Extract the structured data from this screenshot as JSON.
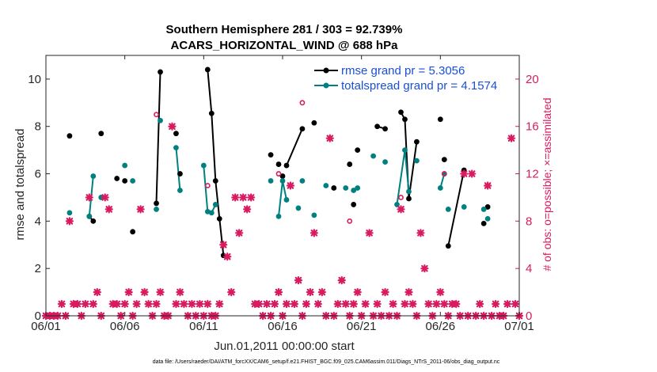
{
  "chart_data": {
    "type": "line",
    "title_line1": "Southern Hemisphere 281 / 303 = 92.739%",
    "title_line2": "ACARS_HORIZONTAL_WIND @ 688 hPa",
    "xlabel": "Jun.01,2011 00:00:00 start",
    "ylabel_left": "rmse and totalspread",
    "ylabel_right": "# of obs: o=possible; ×=assimilated",
    "xlim": [
      0,
      30
    ],
    "ylim_left": [
      0,
      11
    ],
    "ylim_right": [
      0,
      22
    ],
    "x_ticks": [
      {
        "v": 0,
        "label": "06/01"
      },
      {
        "v": 5,
        "label": "06/06"
      },
      {
        "v": 10,
        "label": "06/11"
      },
      {
        "v": 15,
        "label": "06/16"
      },
      {
        "v": 20,
        "label": "06/21"
      },
      {
        "v": 25,
        "label": "06/26"
      },
      {
        "v": 30,
        "label": "07/01"
      }
    ],
    "y_ticks_left": [
      {
        "v": 0,
        "label": "0"
      },
      {
        "v": 2,
        "label": "2"
      },
      {
        "v": 4,
        "label": "4"
      },
      {
        "v": 6,
        "label": "6"
      },
      {
        "v": 8,
        "label": "8"
      },
      {
        "v": 10,
        "label": "10"
      }
    ],
    "y_ticks_right": [
      {
        "v": 0,
        "label": "0"
      },
      {
        "v": 4,
        "label": "4"
      },
      {
        "v": 8,
        "label": "8"
      },
      {
        "v": 12,
        "label": "12"
      },
      {
        "v": 16,
        "label": "16"
      },
      {
        "v": 20,
        "label": "20"
      }
    ],
    "legend": {
      "placement": "top-right",
      "entries": [
        "rmse grand pr = 5.3056",
        "totalspread grand pr = 4.1574"
      ]
    },
    "footer": "data file: /Users/raeder/DAI/ATM_forcXX/CAM6_setup/f.e21.FHIST_BGC.f09_025.CAM6assim.011/Diags_NTrS_2011-06/obs_diag_output.nc",
    "colors": {
      "rmse": "#000000",
      "spread": "#008080",
      "obs": "#d81b60"
    },
    "series": [
      {
        "name": "rmse",
        "color": "#000000",
        "points": [
          [
            1.5,
            7.6
          ],
          [
            2.75,
            4.2
          ],
          [
            3,
            4.0
          ],
          [
            3.5,
            7.7
          ],
          [
            4.5,
            5.8
          ],
          [
            5,
            5.7
          ],
          [
            5.5,
            3.55
          ],
          [
            7,
            4.75
          ],
          [
            7.25,
            10.3
          ],
          [
            8.25,
            7.7
          ],
          [
            8.5,
            6.0
          ],
          [
            10.25,
            10.4
          ],
          [
            10.5,
            8.55
          ],
          [
            10.75,
            5.7
          ],
          [
            11,
            4.1
          ],
          [
            11.25,
            2.55
          ],
          [
            14.25,
            6.8
          ],
          [
            14.75,
            6.4
          ],
          [
            15,
            5.9
          ],
          [
            15.25,
            6.35
          ],
          [
            16.25,
            7.9
          ],
          [
            17,
            8.15
          ],
          [
            18.25,
            5.4
          ],
          [
            19.25,
            6.4
          ],
          [
            19.5,
            4.7
          ],
          [
            19.75,
            7.0
          ],
          [
            21,
            8.0
          ],
          [
            21.5,
            7.9
          ],
          [
            22.5,
            8.6
          ],
          [
            22.75,
            8.3
          ],
          [
            23,
            4.95
          ],
          [
            23.5,
            7.35
          ],
          [
            25,
            8.3
          ],
          [
            25.25,
            6.6
          ],
          [
            25.5,
            2.95
          ],
          [
            26.5,
            6.15
          ],
          [
            27.75,
            3.9
          ],
          [
            28,
            4.6
          ]
        ],
        "segments": [
          [
            1,
            2
          ],
          [
            7,
            8
          ],
          [
            11,
            12,
            13,
            14,
            15
          ],
          [
            19,
            20
          ],
          [
            26,
            27
          ],
          [
            28,
            29,
            30,
            31
          ],
          [
            34,
            35
          ]
        ]
      },
      {
        "name": "totalspread",
        "color": "#008080",
        "points": [
          [
            1.5,
            4.35
          ],
          [
            2.75,
            4.2
          ],
          [
            3,
            5.9
          ],
          [
            3.5,
            5.0
          ],
          [
            5,
            6.35
          ],
          [
            5.5,
            5.7
          ],
          [
            7,
            4.5
          ],
          [
            7.25,
            8.25
          ],
          [
            8.25,
            7.1
          ],
          [
            8.5,
            5.3
          ],
          [
            10,
            6.35
          ],
          [
            10.25,
            4.4
          ],
          [
            10.5,
            4.35
          ],
          [
            10.75,
            4.7
          ],
          [
            14.25,
            5.7
          ],
          [
            14.75,
            4.2
          ],
          [
            15,
            5.7
          ],
          [
            15.25,
            4.9
          ],
          [
            16,
            4.55
          ],
          [
            16.25,
            5.7
          ],
          [
            17,
            4.25
          ],
          [
            17.75,
            5.5
          ],
          [
            19,
            5.4
          ],
          [
            19.5,
            5.3
          ],
          [
            19.75,
            5.4
          ],
          [
            20.75,
            6.75
          ],
          [
            21.5,
            6.5
          ],
          [
            22.25,
            4.7
          ],
          [
            22.75,
            7.0
          ],
          [
            23,
            5.25
          ],
          [
            23.5,
            6.55
          ],
          [
            25,
            5.4
          ],
          [
            25.25,
            6.0
          ],
          [
            25.5,
            4.5
          ],
          [
            26.5,
            4.6
          ],
          [
            27.75,
            4.5
          ],
          [
            28,
            4.1
          ]
        ],
        "segments": [
          [
            1,
            2
          ],
          [
            8,
            9
          ],
          [
            10,
            11,
            12,
            13
          ],
          [
            15,
            16,
            17
          ],
          [
            23,
            24
          ],
          [
            27,
            28,
            29
          ],
          [
            31,
            32
          ]
        ]
      },
      {
        "name": "obs_possible",
        "color": "#d81b60",
        "marker": "o",
        "points": [
          [
            7,
            17
          ],
          [
            10.25,
            11
          ],
          [
            14.75,
            12
          ],
          [
            16.25,
            18
          ],
          [
            19.25,
            8
          ],
          [
            22.5,
            10
          ],
          [
            25.25,
            12
          ]
        ]
      },
      {
        "name": "obs_assimilated",
        "color": "#d81b60",
        "marker": "x",
        "points": [
          [
            0,
            0
          ],
          [
            0.25,
            0
          ],
          [
            0.5,
            0
          ],
          [
            0.75,
            0
          ],
          [
            1,
            1
          ],
          [
            1.25,
            0
          ],
          [
            1.5,
            8
          ],
          [
            1.75,
            1
          ],
          [
            2,
            1
          ],
          [
            2.25,
            0
          ],
          [
            2.5,
            1
          ],
          [
            2.75,
            10
          ],
          [
            3,
            1
          ],
          [
            3.25,
            2
          ],
          [
            3.5,
            0
          ],
          [
            3.75,
            10
          ],
          [
            4,
            9
          ],
          [
            4.25,
            1
          ],
          [
            4.5,
            1
          ],
          [
            4.75,
            0
          ],
          [
            5,
            1
          ],
          [
            5.25,
            2
          ],
          [
            5.5,
            0
          ],
          [
            5.75,
            1
          ],
          [
            6,
            9
          ],
          [
            6.25,
            2
          ],
          [
            6.5,
            1
          ],
          [
            6.75,
            0
          ],
          [
            7,
            1
          ],
          [
            7.25,
            2
          ],
          [
            7.5,
            0
          ],
          [
            7.75,
            0
          ],
          [
            8,
            16
          ],
          [
            8.25,
            1
          ],
          [
            8.5,
            2
          ],
          [
            8.75,
            1
          ],
          [
            9,
            0
          ],
          [
            9.25,
            1
          ],
          [
            9.5,
            0
          ],
          [
            9.75,
            1
          ],
          [
            10,
            0
          ],
          [
            10.25,
            1
          ],
          [
            10.5,
            0
          ],
          [
            10.75,
            0
          ],
          [
            11,
            1
          ],
          [
            11.25,
            6
          ],
          [
            11.5,
            5
          ],
          [
            11.75,
            2
          ],
          [
            12,
            10
          ],
          [
            12.25,
            7
          ],
          [
            12.5,
            10
          ],
          [
            12.75,
            9
          ],
          [
            13,
            10
          ],
          [
            13.25,
            1
          ],
          [
            13.5,
            1
          ],
          [
            13.75,
            0
          ],
          [
            14,
            1
          ],
          [
            14.25,
            0
          ],
          [
            14.5,
            1
          ],
          [
            14.75,
            2
          ],
          [
            15,
            0
          ],
          [
            15.25,
            1
          ],
          [
            15.5,
            11
          ],
          [
            15.75,
            1
          ],
          [
            16,
            3
          ],
          [
            16.25,
            0
          ],
          [
            16.5,
            1
          ],
          [
            16.75,
            2
          ],
          [
            17,
            7
          ],
          [
            17.25,
            1
          ],
          [
            17.5,
            2
          ],
          [
            17.75,
            0
          ],
          [
            18,
            15
          ],
          [
            18.25,
            0
          ],
          [
            18.5,
            1
          ],
          [
            18.75,
            3
          ],
          [
            19,
            1
          ],
          [
            19.25,
            0
          ],
          [
            19.5,
            1
          ],
          [
            19.75,
            2
          ],
          [
            20,
            0
          ],
          [
            20.25,
            1
          ],
          [
            20.5,
            7
          ],
          [
            20.75,
            0
          ],
          [
            21,
            1
          ],
          [
            21.25,
            0
          ],
          [
            21.5,
            2
          ],
          [
            21.75,
            0
          ],
          [
            22,
            1
          ],
          [
            22.25,
            0
          ],
          [
            22.5,
            9
          ],
          [
            22.75,
            1
          ],
          [
            23,
            2
          ],
          [
            23.25,
            1
          ],
          [
            23.5,
            0
          ],
          [
            23.75,
            7
          ],
          [
            24,
            4
          ],
          [
            24.25,
            1
          ],
          [
            24.5,
            0
          ],
          [
            24.75,
            1
          ],
          [
            25,
            2
          ],
          [
            25.25,
            1
          ],
          [
            25.5,
            0
          ],
          [
            25.75,
            1
          ],
          [
            26,
            1
          ],
          [
            26.25,
            0
          ],
          [
            26.5,
            12
          ],
          [
            26.75,
            0
          ],
          [
            27,
            12
          ],
          [
            27.25,
            0
          ],
          [
            27.5,
            1
          ],
          [
            27.75,
            0
          ],
          [
            28,
            11
          ],
          [
            28.25,
            0
          ],
          [
            28.5,
            1
          ],
          [
            28.75,
            0
          ],
          [
            29,
            0
          ],
          [
            29.25,
            1
          ],
          [
            29.5,
            15
          ],
          [
            29.75,
            1
          ],
          [
            30,
            0
          ]
        ]
      }
    ]
  }
}
